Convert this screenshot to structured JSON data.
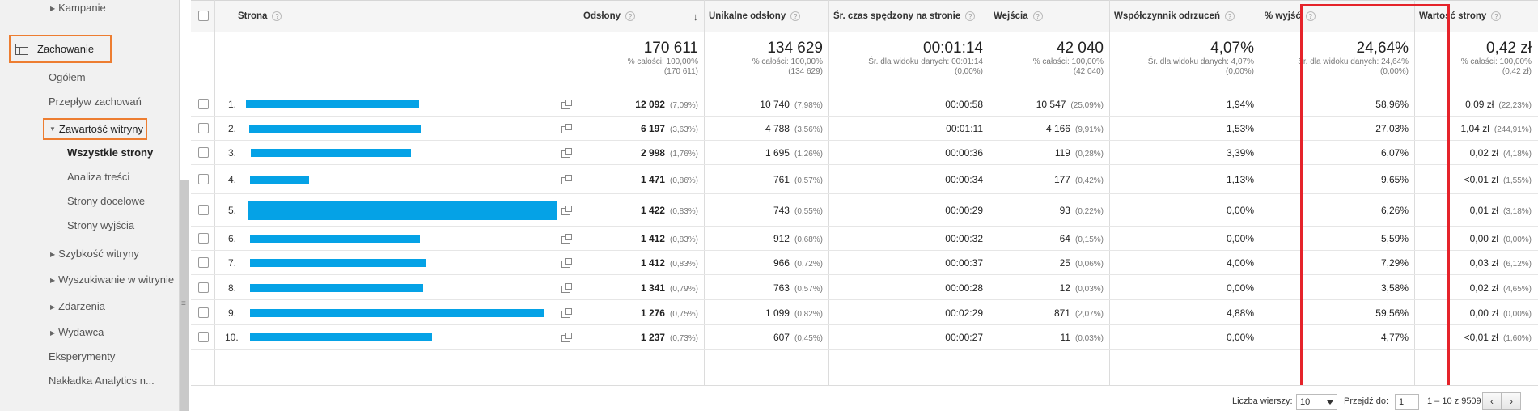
{
  "sidebar": {
    "kampanie": "Kampanie",
    "zachowanie": "Zachowanie",
    "ogolem": "Ogółem",
    "przeplyw": "Przepływ zachowań",
    "zawartosc": "Zawartość witryny",
    "wszystkie": "Wszystkie strony",
    "analiza": "Analiza treści",
    "docelowe": "Strony docelowe",
    "wyjscia": "Strony wyjścia",
    "szybkosc": "Szybkość witryny",
    "wyszukiwanie": "Wyszukiwanie w witrynie",
    "zdarzenia": "Zdarzenia",
    "wydawca": "Wydawca",
    "eksperymenty": "Eksperymenty",
    "nakladka": "Nakładka Analytics n..."
  },
  "table": {
    "headers": {
      "strona": "Strona",
      "odslony": "Odsłony",
      "unikalne": "Unikalne odsłony",
      "czas": "Śr. czas spędzony na stronie",
      "wejscia": "Wejścia",
      "odrzucen": "Współczynnik odrzuceń",
      "wyjsc": "% wyjść",
      "wartosc": "Wartość strony"
    },
    "totals": {
      "odslony": {
        "big": "170 611",
        "l1": "% całości: 100,00%",
        "l2": "(170 611)"
      },
      "unikalne": {
        "big": "134 629",
        "l1": "% całości: 100,00%",
        "l2": "(134 629)"
      },
      "czas": {
        "big": "00:01:14",
        "l1": "Śr. dla widoku danych: 00:01:14",
        "l2": "(0,00%)"
      },
      "wejscia": {
        "big": "42 040",
        "l1": "% całości: 100,00%",
        "l2": "(42 040)"
      },
      "odrzucen": {
        "big": "4,07%",
        "l1": "Śr. dla widoku danych: 4,07%",
        "l2": "(0,00%)"
      },
      "wyjsc": {
        "big": "24,64%",
        "l1": "Śr. dla widoku danych: 24,64%",
        "l2": "(0,00%)"
      },
      "wartosc": {
        "big": "0,42 zł",
        "l1": "% całości: 100,00%",
        "l2": "(0,42 zł)"
      }
    },
    "rows": [
      {
        "idx": "1.",
        "odslony": "12 092",
        "odslony_pct": "(7,09%)",
        "unikalne": "10 740",
        "unikalne_pct": "(7,98%)",
        "czas": "00:00:58",
        "wejscia": "10 547",
        "wejscia_pct": "(25,09%)",
        "odrzucen": "1,94%",
        "wyjsc": "58,96%",
        "wartosc": "0,09 zł",
        "wartosc_pct": "(22,23%)"
      },
      {
        "idx": "2.",
        "odslony": "6 197",
        "odslony_pct": "(3,63%)",
        "unikalne": "4 788",
        "unikalne_pct": "(3,56%)",
        "czas": "00:01:11",
        "wejscia": "4 166",
        "wejscia_pct": "(9,91%)",
        "odrzucen": "1,53%",
        "wyjsc": "27,03%",
        "wartosc": "1,04 zł",
        "wartosc_pct": "(244,91%)"
      },
      {
        "idx": "3.",
        "odslony": "2 998",
        "odslony_pct": "(1,76%)",
        "unikalne": "1 695",
        "unikalne_pct": "(1,26%)",
        "czas": "00:00:36",
        "wejscia": "119",
        "wejscia_pct": "(0,28%)",
        "odrzucen": "3,39%",
        "wyjsc": "6,07%",
        "wartosc": "0,02 zł",
        "wartosc_pct": "(4,18%)"
      },
      {
        "idx": "4.",
        "odslony": "1 471",
        "odslony_pct": "(0,86%)",
        "unikalne": "761",
        "unikalne_pct": "(0,57%)",
        "czas": "00:00:34",
        "wejscia": "177",
        "wejscia_pct": "(0,42%)",
        "odrzucen": "1,13%",
        "wyjsc": "9,65%",
        "wartosc": "<0,01 zł",
        "wartosc_pct": "(1,55%)"
      },
      {
        "idx": "5.",
        "odslony": "1 422",
        "odslony_pct": "(0,83%)",
        "unikalne": "743",
        "unikalne_pct": "(0,55%)",
        "czas": "00:00:29",
        "wejscia": "93",
        "wejscia_pct": "(0,22%)",
        "odrzucen": "0,00%",
        "wyjsc": "6,26%",
        "wartosc": "0,01 zł",
        "wartosc_pct": "(3,18%)"
      },
      {
        "idx": "6.",
        "odslony": "1 412",
        "odslony_pct": "(0,83%)",
        "unikalne": "912",
        "unikalne_pct": "(0,68%)",
        "czas": "00:00:32",
        "wejscia": "64",
        "wejscia_pct": "(0,15%)",
        "odrzucen": "0,00%",
        "wyjsc": "5,59%",
        "wartosc": "0,00 zł",
        "wartosc_pct": "(0,00%)"
      },
      {
        "idx": "7.",
        "odslony": "1 412",
        "odslony_pct": "(0,83%)",
        "unikalne": "966",
        "unikalne_pct": "(0,72%)",
        "czas": "00:00:37",
        "wejscia": "25",
        "wejscia_pct": "(0,06%)",
        "odrzucen": "4,00%",
        "wyjsc": "7,29%",
        "wartosc": "0,03 zł",
        "wartosc_pct": "(6,12%)"
      },
      {
        "idx": "8.",
        "odslony": "1 341",
        "odslony_pct": "(0,79%)",
        "unikalne": "763",
        "unikalne_pct": "(0,57%)",
        "czas": "00:00:28",
        "wejscia": "12",
        "wejscia_pct": "(0,03%)",
        "odrzucen": "0,00%",
        "wyjsc": "3,58%",
        "wartosc": "0,02 zł",
        "wartosc_pct": "(4,65%)"
      },
      {
        "idx": "9.",
        "odslony": "1 276",
        "odslony_pct": "(0,75%)",
        "unikalne": "1 099",
        "unikalne_pct": "(0,82%)",
        "czas": "00:02:29",
        "wejscia": "871",
        "wejscia_pct": "(2,07%)",
        "odrzucen": "4,88%",
        "wyjsc": "59,56%",
        "wartosc": "0,00 zł",
        "wartosc_pct": "(0,00%)"
      },
      {
        "idx": "10.",
        "odslony": "1 237",
        "odslony_pct": "(0,73%)",
        "unikalne": "607",
        "unikalne_pct": "(0,45%)",
        "czas": "00:00:27",
        "wejscia": "11",
        "wejscia_pct": "(0,03%)",
        "odrzucen": "0,00%",
        "wyjsc": "4,77%",
        "wartosc": "<0,01 zł",
        "wartosc_pct": "(1,60%)"
      }
    ]
  },
  "footer": {
    "rows_label": "Liczba wierszy:",
    "rows_value": "10",
    "goto_label": "Przejdź do:",
    "goto_value": "1",
    "range": "1 – 10 z 9509",
    "prev": "‹",
    "next": "›"
  },
  "colors": {
    "bar": "#05a2e6",
    "orange_highlight": "#ed7d31",
    "red_highlight": "#e5232a"
  }
}
